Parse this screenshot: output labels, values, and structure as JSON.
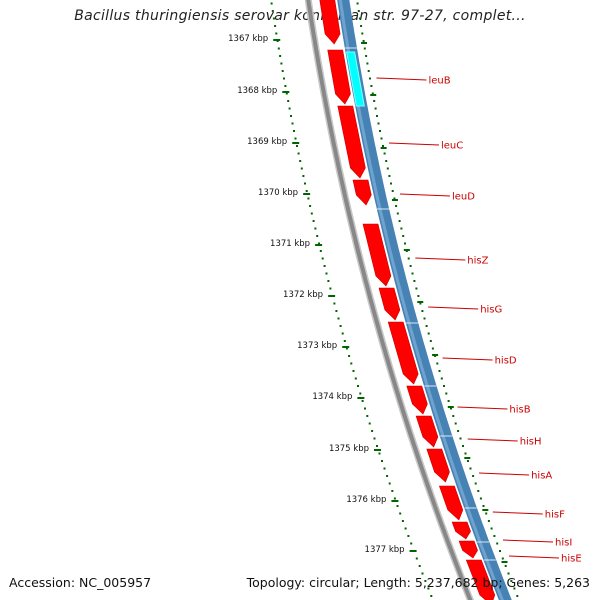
{
  "title": "Bacillus thuringiensis serovar konkukian str. 97-27, complet...",
  "accession_text": "Accession: NC_005957",
  "summary_text": "Topology: circular; Length: 5,237,682 bp; Genes: 5,263",
  "colors": {
    "forward_cds": "#ff0000",
    "reverse_cds": "#4682b4",
    "highlight_feature": "#00ffff",
    "backbone": "#888888",
    "tick_marks": "#006400",
    "gene_labels": "#cc0000"
  },
  "ruler": {
    "unit": "kbp",
    "labels": [
      "1367 kbp",
      "1368 kbp",
      "1369 kbp",
      "1370 kbp",
      "1371 kbp",
      "1372 kbp",
      "1373 kbp",
      "1374 kbp",
      "1375 kbp",
      "1376 kbp",
      "1377 kbp"
    ]
  },
  "gene_labels": [
    "leuB",
    "leuC",
    "leuD",
    "hisZ",
    "hisG",
    "hisD",
    "hisB",
    "hisH",
    "hisA",
    "hisF",
    "hisI",
    "hisE"
  ]
}
